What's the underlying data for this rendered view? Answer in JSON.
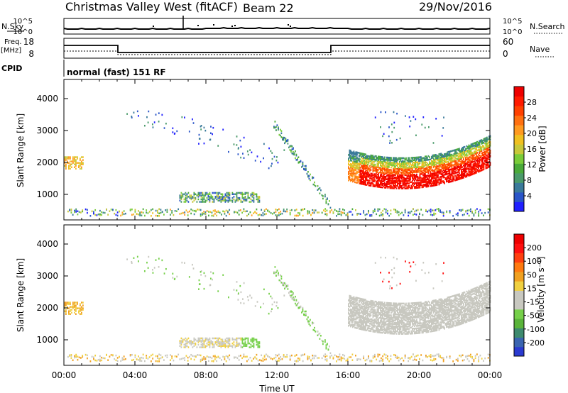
{
  "header": {
    "station": "Christmas Valley West (fitACF)",
    "beam": "Beam 22",
    "date": "29/Nov/2016"
  },
  "info_panel": {
    "nsky_label": "N.Sky",
    "nsearch_label": "N.Search",
    "noise_ticks": [
      "10^5",
      "10^0"
    ],
    "freq_label": "Freq.",
    "freq_unit": "[MHz]",
    "freq_ticks": [
      "18",
      "8"
    ],
    "nave_label": "Nave",
    "nave_ticks": [
      "60",
      "0"
    ],
    "cpid_label": "CPID",
    "cpid_value": "normal (fast) 151 RF"
  },
  "chart_data": [
    {
      "type": "heatmap",
      "name": "power",
      "ylabel": "Slant Range [km]",
      "ylim": [
        200,
        4600
      ],
      "yticks": [
        1000,
        2000,
        3000,
        4000
      ],
      "colorbar_label": "Power [dB]",
      "colorbar_ticks": [
        4,
        8,
        12,
        16,
        20,
        24,
        28
      ],
      "colorbar_colors": [
        "#2020ff",
        "#2a55c8",
        "#3a7a9a",
        "#4a9a6a",
        "#4aaa3a",
        "#7acc3a",
        "#c8c83a",
        "#f0c020",
        "#ff9a20",
        "#ff7010",
        "#ff4000",
        "#ff1a00",
        "#ee0000"
      ]
    },
    {
      "type": "heatmap",
      "name": "velocity",
      "ylabel": "Slant Range [km]",
      "ylim": [
        200,
        4600
      ],
      "yticks": [
        1000,
        2000,
        3000,
        4000
      ],
      "xlabel": "Time UT",
      "xticks": [
        "00:00",
        "04:00",
        "08:00",
        "12:00",
        "16:00",
        "20:00",
        "00:00"
      ],
      "colorbar_label": "Velocity [m s⁻¹]",
      "colorbar_ticks": [
        "200",
        "100",
        "50",
        "15",
        "-15",
        "-50",
        "-100",
        "-200"
      ],
      "colorbar_colors": [
        "#2a3ad0",
        "#3a64b0",
        "#3e8a6e",
        "#5ab43a",
        "#76d04a",
        "#c8c8c0",
        "#c8c8c0",
        "#f0d040",
        "#f0a020",
        "#ff7a10",
        "#ff4010",
        "#ff1010",
        "#ee0000"
      ]
    }
  ]
}
